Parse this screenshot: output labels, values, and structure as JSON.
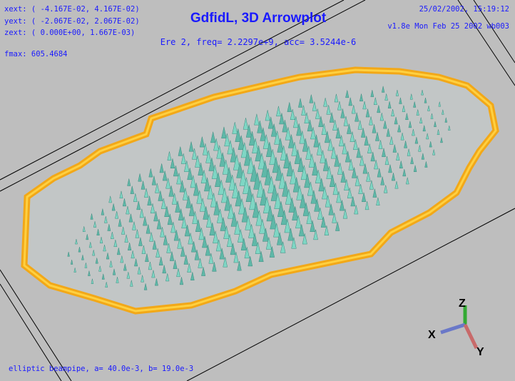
{
  "header": {
    "extents": [
      "xext: ( -4.167E-02,  4.167E-02)",
      "yext: ( -2.067E-02,  2.067E-02)",
      "zext: (  0.000E+00,  1.667E-03)"
    ],
    "fmax": "fmax:  605.4684",
    "title": "GdfidL, 3D Arrowplot",
    "subtitle": "Ere 2, freq= 2.2297e+9, acc= 3.5244e-6",
    "timestamp": "25/02/2002, 15:19:12",
    "version": "v1.8e Mon Feb 25 2002 wb003"
  },
  "axes": {
    "z": "Z",
    "x": "X",
    "y": "Y"
  },
  "footer": "elliptic beampipe, a= 40.0e-3, b= 19.0e-3"
}
